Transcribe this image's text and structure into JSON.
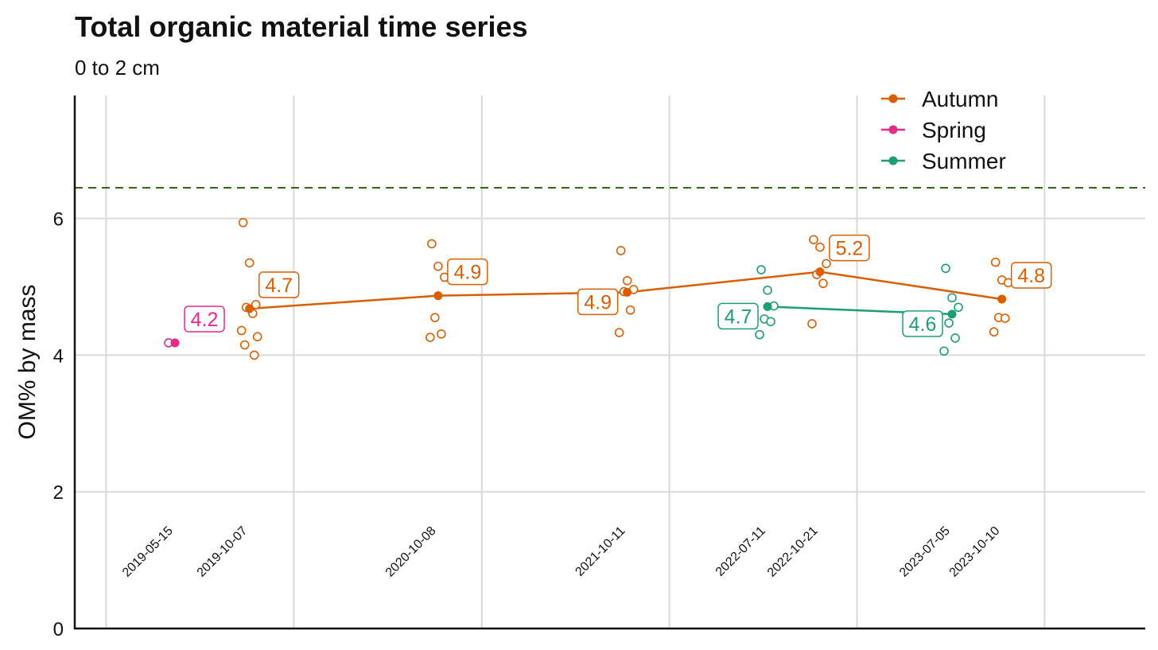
{
  "chart_data": {
    "type": "line",
    "title": "Total organic material time series",
    "subtitle": "0 to 2 cm",
    "xlabel": "",
    "ylabel": "OM% by mass",
    "ylim": [
      0,
      7.8
    ],
    "yticks": [
      0,
      2,
      4,
      6
    ],
    "xlim": [
      "2018-11-01",
      "2024-07-15"
    ],
    "x_gridlines": [
      "2019-01-01",
      "2020-01-01",
      "2021-01-01",
      "2022-01-01",
      "2023-01-01",
      "2024-01-01"
    ],
    "grid": true,
    "reference_line": {
      "y": 6.45,
      "style": "dashed",
      "color": "#2f6b12"
    },
    "legend": {
      "placement": "top-right",
      "entries": [
        "Autumn",
        "Spring",
        "Summer"
      ]
    },
    "colors": {
      "Autumn": "#d95f02",
      "Spring": "#e7298a",
      "Summer": "#1b9e77"
    },
    "series": [
      {
        "name": "Autumn",
        "points": [
          {
            "x": "2019-10-07",
            "mean": 4.68,
            "label": "4.7",
            "label_side": "right",
            "samples": [
              5.94,
              5.35,
              4.74,
              4.7,
              4.61,
              4.36,
              4.27,
              4.15,
              4.0
            ]
          },
          {
            "x": "2020-10-08",
            "mean": 4.87,
            "label": "4.9",
            "label_side": "right",
            "samples": [
              5.63,
              5.3,
              5.14,
              4.55,
              4.31,
              4.26
            ]
          },
          {
            "x": "2021-10-11",
            "mean": 4.92,
            "label": "4.9",
            "label_side": "left",
            "samples": [
              5.53,
              5.09,
              4.96,
              4.93,
              4.66,
              4.33
            ]
          },
          {
            "x": "2022-10-21",
            "mean": 5.22,
            "label": "5.2",
            "label_side": "right",
            "samples": [
              5.69,
              5.58,
              5.34,
              5.18,
              5.05,
              4.46
            ]
          },
          {
            "x": "2023-10-10",
            "mean": 4.82,
            "label": "4.8",
            "label_side": "right",
            "samples": [
              5.36,
              5.1,
              5.06,
              4.55,
              4.54,
              4.34
            ]
          }
        ]
      },
      {
        "name": "Spring",
        "points": [
          {
            "x": "2019-05-15",
            "mean": 4.18,
            "label": "4.2",
            "label_side": "right",
            "samples": [
              4.18
            ]
          }
        ]
      },
      {
        "name": "Summer",
        "points": [
          {
            "x": "2022-07-11",
            "mean": 4.71,
            "label": "4.7",
            "label_side": "left",
            "samples": [
              5.25,
              4.95,
              4.72,
              4.53,
              4.49,
              4.3
            ]
          },
          {
            "x": "2023-07-05",
            "mean": 4.6,
            "label": "4.6",
            "label_side": "left",
            "samples": [
              5.27,
              4.84,
              4.7,
              4.47,
              4.25,
              4.06
            ]
          }
        ]
      }
    ],
    "date_labels": [
      "2019-05-15",
      "2019-10-07",
      "2020-10-08",
      "2021-10-11",
      "2022-07-11",
      "2022-10-21",
      "2023-07-05",
      "2023-10-10"
    ]
  }
}
